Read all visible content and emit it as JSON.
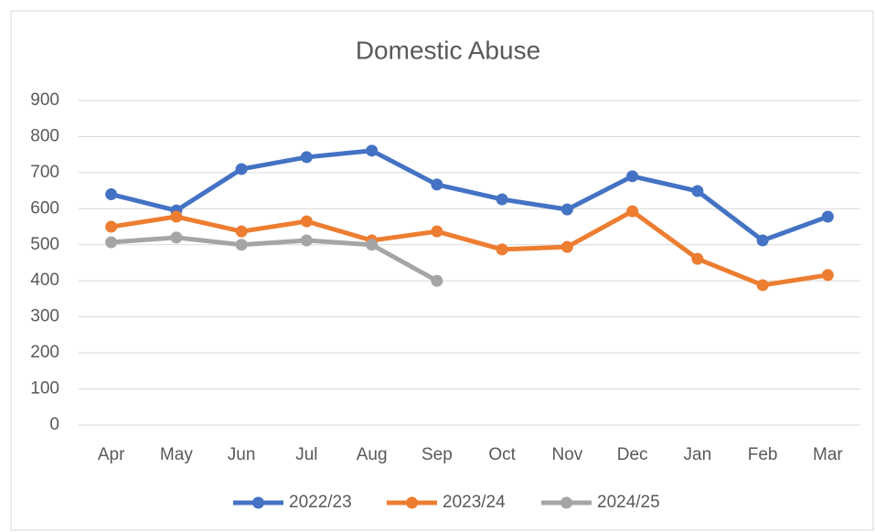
{
  "chart_data": {
    "type": "line",
    "title": "Domestic Abuse",
    "categories": [
      "Apr",
      "May",
      "Jun",
      "Jul",
      "Aug",
      "Sep",
      "Oct",
      "Nov",
      "Dec",
      "Jan",
      "Feb",
      "Mar"
    ],
    "series": [
      {
        "name": "2022/23",
        "color": "#4472c4",
        "values": [
          640,
          595,
          710,
          743,
          761,
          667,
          626,
          598,
          690,
          649,
          512,
          578
        ]
      },
      {
        "name": "2023/24",
        "color": "#ed7d31",
        "values": [
          550,
          578,
          537,
          565,
          512,
          537,
          487,
          494,
          593,
          461,
          388,
          416
        ]
      },
      {
        "name": "2024/25",
        "color": "#a5a5a5",
        "values": [
          507,
          520,
          500,
          512,
          500,
          400,
          null,
          null,
          null,
          null,
          null,
          null
        ]
      }
    ],
    "ylim": [
      0,
      900
    ],
    "yticks": [
      0,
      100,
      200,
      300,
      400,
      500,
      600,
      700,
      800,
      900
    ],
    "grid": true,
    "legend": "bottom"
  }
}
